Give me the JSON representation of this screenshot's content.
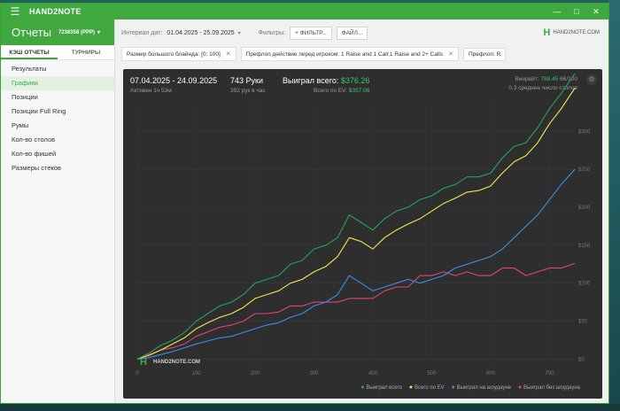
{
  "app": {
    "name": "HAND2NOTE",
    "page_title": "Отчеты",
    "account": "7238358 (PPP)"
  },
  "sidebar": {
    "tabs": [
      {
        "label": "КЭШ ОТЧЕТЫ",
        "active": true
      },
      {
        "label": "ТУРНИРЫ",
        "active": false
      }
    ],
    "items": [
      {
        "label": "Результаты",
        "active": false
      },
      {
        "label": "Графики",
        "active": true
      },
      {
        "label": "Позиции",
        "active": false
      },
      {
        "label": "Позиции Full Ring",
        "active": false
      },
      {
        "label": "Румы",
        "active": false
      },
      {
        "label": "Кол-во столов",
        "active": false
      },
      {
        "label": "Кол-во фишей",
        "active": false
      },
      {
        "label": "Размеры стеков",
        "active": false
      }
    ]
  },
  "filterbar": {
    "date_label": "Интервал дат:",
    "date_value": "01.04.2025 - 25.09.2025",
    "filters_label": "Фильтры:",
    "filter_button": "ФИЛЬТР...",
    "file_button": "ФАЙЛ...",
    "brand": "HAND2NOTE.COM"
  },
  "chips": [
    "Размер большого блайнда: [0; 100]",
    "Префлоп действие перед игроком: 1 Raise and 1 Call;1 Raise and 2+ Calls",
    "Префлоп: R"
  ],
  "stats": {
    "date_range": "07.04.2025 - 24.09.2025",
    "active": "Активен 1ч 53м",
    "hands": "743 Руки",
    "hands_per_hour": "392 рук в час",
    "won_label": "Выиграл всего:",
    "won_value": "$376.26",
    "ev_label": "Всего по EV:",
    "ev_value": "$357.06",
    "winrate_label": "Винрейт:",
    "winrate_value": "788.45",
    "winrate_sample": "66/100",
    "tables_avg": "0.3 среднее число столов"
  },
  "colors": {
    "accent": "#3fa93f",
    "chart_bg": "#2e2e2e",
    "won_total": "#23a55a",
    "ev_total": "#f2e84b",
    "showdown": "#3a8ee6",
    "non_showdown": "#e0466e"
  },
  "chart_data": {
    "type": "line",
    "watermark": "HAND2NOTE.COM",
    "xlim": [
      0,
      743
    ],
    "ylim": [
      -10,
      340
    ],
    "x_ticks": [
      0,
      100,
      200,
      300,
      400,
      500,
      600,
      700
    ],
    "x_tick_labels": [
      "0",
      "100",
      "200",
      "300",
      "400",
      "500",
      "600",
      "700"
    ],
    "y_ticks": [
      0,
      50,
      100,
      150,
      200,
      250,
      300
    ],
    "y_tick_labels": [
      "$0",
      "$50",
      "$100",
      "$150",
      "$200",
      "$250",
      "$300"
    ],
    "grid": true,
    "legend_position": "bottom-right",
    "series": [
      {
        "name": "Выиграл всего",
        "color": "#23a55a",
        "x": [
          0,
          20,
          40,
          60,
          80,
          100,
          120,
          140,
          160,
          180,
          200,
          220,
          240,
          260,
          280,
          300,
          320,
          340,
          360,
          380,
          400,
          420,
          440,
          460,
          480,
          500,
          520,
          540,
          560,
          580,
          600,
          620,
          640,
          660,
          680,
          700,
          720,
          743
        ],
        "y": [
          0,
          8,
          18,
          25,
          35,
          50,
          60,
          70,
          75,
          85,
          100,
          105,
          110,
          125,
          130,
          145,
          150,
          160,
          190,
          180,
          170,
          185,
          195,
          200,
          210,
          215,
          225,
          230,
          240,
          240,
          245,
          265,
          280,
          285,
          305,
          330,
          350,
          376
        ]
      },
      {
        "name": "Всего по EV",
        "color": "#f2e84b",
        "x": [
          0,
          20,
          40,
          60,
          80,
          100,
          120,
          140,
          160,
          180,
          200,
          220,
          240,
          260,
          280,
          300,
          320,
          340,
          360,
          380,
          400,
          420,
          440,
          460,
          480,
          500,
          520,
          540,
          560,
          580,
          600,
          620,
          640,
          660,
          680,
          700,
          720,
          743
        ],
        "y": [
          0,
          5,
          12,
          20,
          28,
          40,
          48,
          55,
          60,
          68,
          80,
          85,
          90,
          100,
          105,
          115,
          122,
          135,
          160,
          155,
          145,
          160,
          170,
          178,
          185,
          195,
          205,
          212,
          220,
          222,
          228,
          245,
          260,
          268,
          285,
          310,
          330,
          357
        ]
      },
      {
        "name": "Выиграл на шоудауне",
        "color": "#3a8ee6",
        "x": [
          0,
          20,
          40,
          60,
          80,
          100,
          120,
          140,
          160,
          180,
          200,
          220,
          240,
          260,
          280,
          300,
          320,
          340,
          360,
          380,
          400,
          420,
          440,
          460,
          480,
          500,
          520,
          540,
          560,
          580,
          600,
          620,
          640,
          660,
          680,
          700,
          720,
          743
        ],
        "y": [
          0,
          2,
          6,
          10,
          15,
          20,
          24,
          28,
          30,
          35,
          40,
          45,
          48,
          55,
          60,
          70,
          75,
          85,
          110,
          100,
          90,
          95,
          100,
          105,
          100,
          105,
          110,
          120,
          125,
          130,
          135,
          145,
          160,
          175,
          190,
          210,
          230,
          250
        ]
      },
      {
        "name": "Выиграл без шоудауна",
        "color": "#e0466e",
        "x": [
          0,
          20,
          40,
          60,
          80,
          100,
          120,
          140,
          160,
          180,
          200,
          220,
          240,
          260,
          280,
          300,
          320,
          340,
          360,
          380,
          400,
          420,
          440,
          460,
          480,
          500,
          520,
          540,
          560,
          580,
          600,
          620,
          640,
          660,
          680,
          700,
          720,
          743
        ],
        "y": [
          0,
          6,
          12,
          15,
          20,
          30,
          36,
          42,
          45,
          50,
          60,
          60,
          62,
          70,
          70,
          75,
          75,
          75,
          80,
          80,
          80,
          90,
          95,
          95,
          110,
          110,
          115,
          110,
          115,
          110,
          110,
          120,
          120,
          110,
          115,
          120,
          120,
          126
        ]
      }
    ]
  }
}
